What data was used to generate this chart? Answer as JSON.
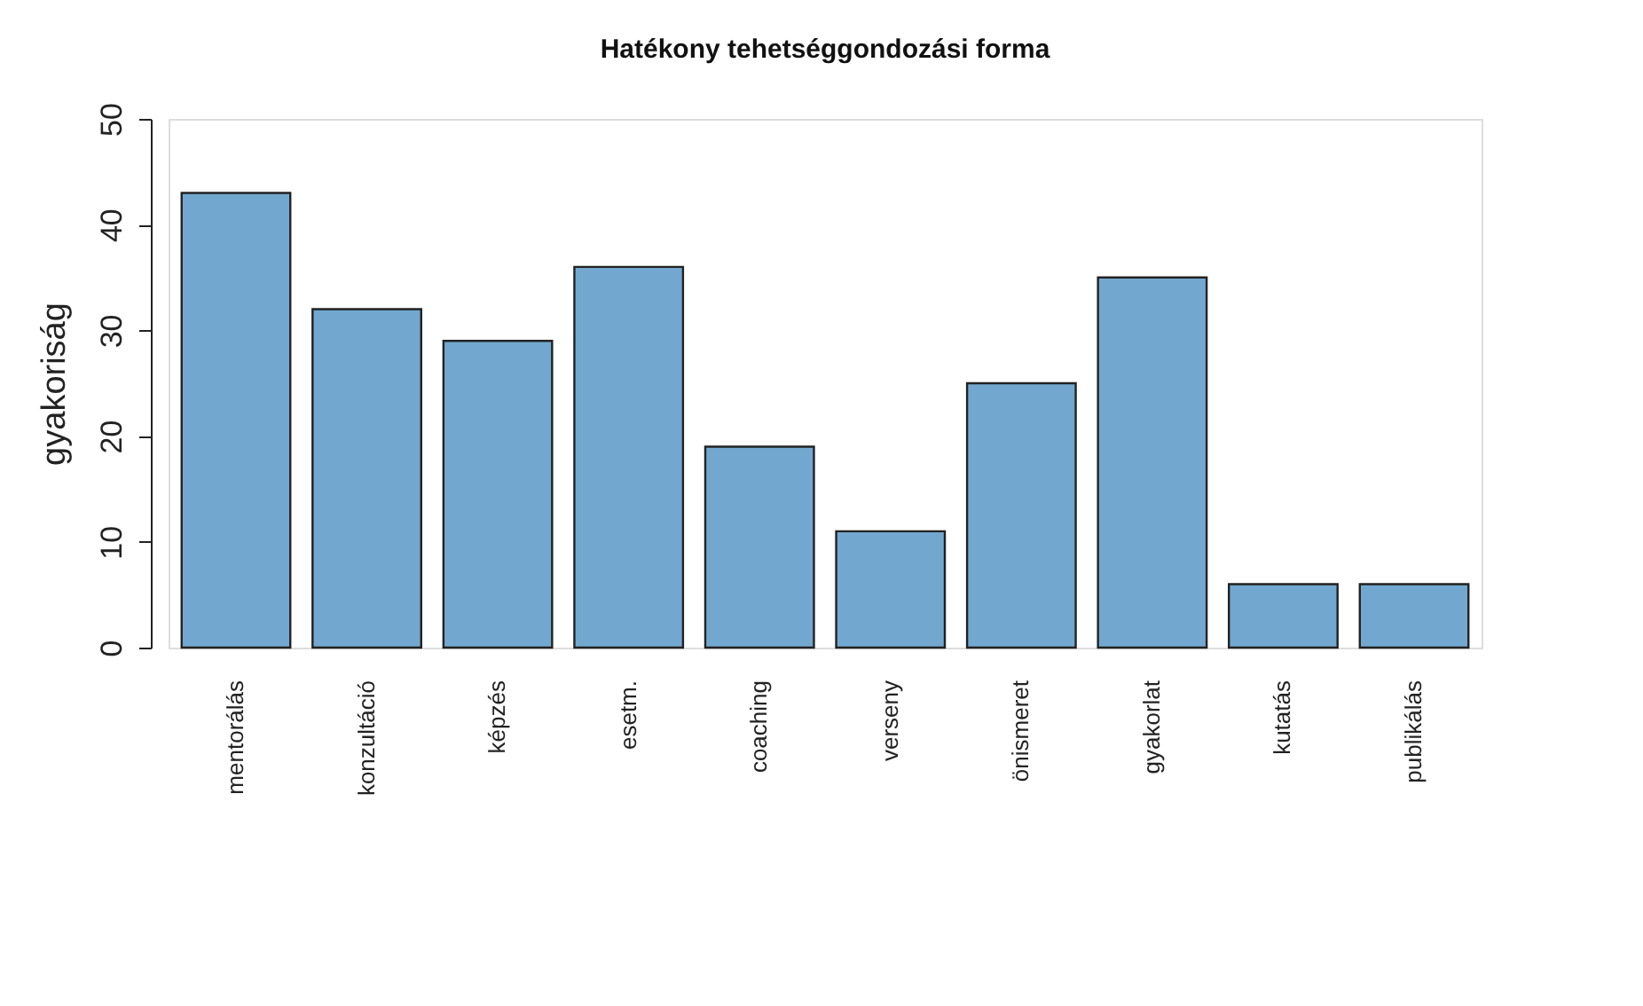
{
  "chart_data": {
    "type": "bar",
    "title": "Hatékony tehetséggondozási forma",
    "ylabel": "gyakoriság",
    "categories": [
      "mentorálás",
      "konzultáció",
      "képzés",
      "esetm.",
      "coaching",
      "verseny",
      "önismeret",
      "gyakorlat",
      "kutatás",
      "publikálás"
    ],
    "values": [
      43,
      32,
      29,
      36,
      19,
      11,
      25,
      35,
      6,
      6
    ],
    "color": "#72a8cf",
    "ylim": [
      0,
      50
    ],
    "yticks": [
      0,
      10,
      20,
      30,
      40,
      50
    ],
    "grid": false
  }
}
